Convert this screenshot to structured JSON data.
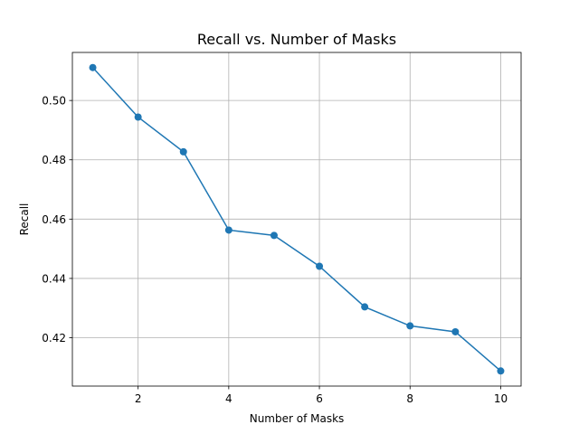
{
  "chart_data": {
    "type": "line",
    "title": "Recall vs. Number of Masks",
    "xlabel": "Number of Masks",
    "ylabel": "Recall",
    "x": [
      1,
      2,
      3,
      4,
      5,
      6,
      7,
      8,
      9,
      10
    ],
    "series": [
      {
        "values": [
          0.5111,
          0.4944,
          0.4827,
          0.4563,
          0.4545,
          0.4441,
          0.4304,
          0.424,
          0.422,
          0.4088
        ],
        "color": "#1f77b4",
        "marker": "circle"
      }
    ],
    "xlim": [
      0.55,
      10.45
    ],
    "ylim": [
      0.4037,
      0.5162
    ],
    "xticks": [
      2,
      4,
      6,
      8,
      10
    ],
    "xtick_labels": [
      "2",
      "4",
      "6",
      "8",
      "10"
    ],
    "yticks": [
      0.42,
      0.44,
      0.46,
      0.48,
      0.5
    ],
    "ytick_labels": [
      "0.42",
      "0.44",
      "0.46",
      "0.48",
      "0.50"
    ],
    "grid": true,
    "legend": false
  }
}
